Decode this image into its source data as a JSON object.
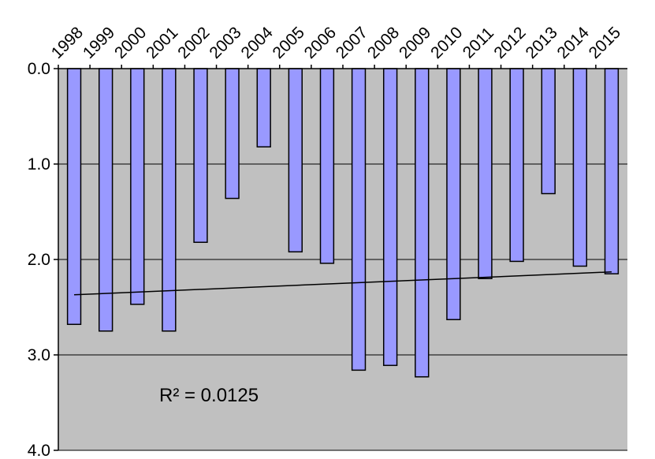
{
  "chart_data": {
    "type": "bar",
    "orientation": "vertical",
    "y_axis_inverted": true,
    "x_axis_position": "top",
    "categories": [
      "1998",
      "1999",
      "2000",
      "2001",
      "2002",
      "2003",
      "2004",
      "2005",
      "2006",
      "2007",
      "2008",
      "2009",
      "2010",
      "2011",
      "2012",
      "2013",
      "2014",
      "2015"
    ],
    "values": [
      2.68,
      2.75,
      2.47,
      2.75,
      1.82,
      1.36,
      0.82,
      1.92,
      2.04,
      3.16,
      3.11,
      3.23,
      2.63,
      2.2,
      2.02,
      1.31,
      2.07,
      2.15
    ],
    "ylim": [
      0,
      4
    ],
    "yticks": [
      0,
      1,
      2,
      3,
      4
    ],
    "ytick_labels": [
      "0.0",
      "1.0",
      "2.0",
      "3.0",
      "4.0"
    ],
    "grid": true,
    "trendline": {
      "type": "linear",
      "start": 2.37,
      "end": 2.13
    },
    "annotation": "R² = 0.0125",
    "title": "",
    "xlabel": "",
    "ylabel": "",
    "colors": {
      "bar": "#9999ff",
      "plot_bg": "#c0c0c0",
      "gridline": "#000000",
      "trendline": "#000000"
    }
  }
}
